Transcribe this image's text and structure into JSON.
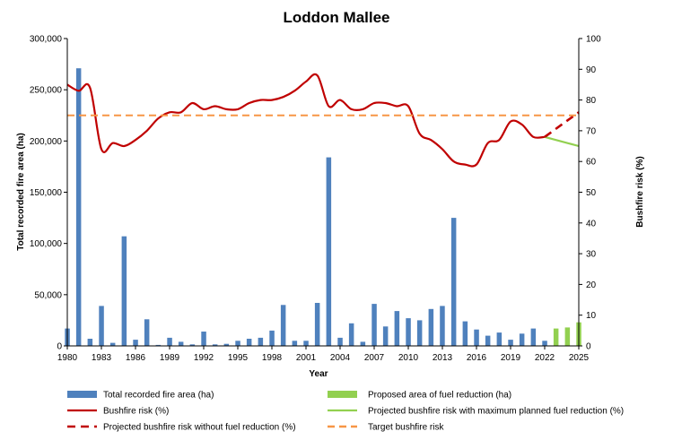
{
  "chart_data": {
    "type": "bar+line",
    "title": "Loddon Mallee",
    "xlabel": "Year",
    "ylabel_left": "Total recorded fire area (ha)",
    "ylabel_right": "Bushfire risk (%)",
    "xlim": [
      1980,
      2025
    ],
    "ylim_left": [
      0,
      300000
    ],
    "ylim_right": [
      0,
      100
    ],
    "x_ticks": [
      1980,
      1983,
      1986,
      1989,
      1992,
      1995,
      1998,
      2001,
      2004,
      2007,
      2010,
      2013,
      2016,
      2019,
      2022,
      2025
    ],
    "y_left_ticks": [
      "0",
      "50,000",
      "100,000",
      "150,000",
      "200,000",
      "250,000",
      "300,000"
    ],
    "y_right_ticks": [
      "0",
      "10",
      "20",
      "30",
      "40",
      "50",
      "60",
      "70",
      "80",
      "90",
      "100"
    ],
    "grid": false,
    "legend_position": "bottom",
    "series": [
      {
        "name": "Total recorded fire area (ha)",
        "kind": "bar",
        "axis": "left",
        "color": "#4f81bd",
        "x": [
          1980,
          1981,
          1982,
          1983,
          1984,
          1985,
          1986,
          1987,
          1988,
          1989,
          1990,
          1991,
          1992,
          1993,
          1994,
          1995,
          1996,
          1997,
          1998,
          1999,
          2000,
          2001,
          2002,
          2003,
          2004,
          2005,
          2006,
          2007,
          2008,
          2009,
          2010,
          2011,
          2012,
          2013,
          2014,
          2015,
          2016,
          2017,
          2018,
          2019,
          2020,
          2021,
          2022
        ],
        "values": [
          17000,
          271000,
          7000,
          39000,
          3000,
          107000,
          6000,
          26000,
          1000,
          8000,
          4000,
          1500,
          14000,
          1500,
          2000,
          5000,
          7000,
          8000,
          15000,
          40000,
          5000,
          5000,
          42000,
          184000,
          8000,
          22000,
          4000,
          41000,
          19000,
          34000,
          27000,
          25000,
          36000,
          39000,
          125000,
          24000,
          16000,
          10000,
          13000,
          6000,
          12000,
          17000,
          5000
        ]
      },
      {
        "name": "Proposed area of fuel reduction (ha)",
        "kind": "bar",
        "axis": "left",
        "color": "#92d050",
        "x": [
          2023,
          2024,
          2025
        ],
        "values": [
          17000,
          18000,
          23000
        ]
      },
      {
        "name": "Bushfire risk (%)",
        "kind": "line",
        "axis": "right",
        "color": "#c00000",
        "x": [
          1980,
          1981,
          1982,
          1983,
          1984,
          1985,
          1986,
          1987,
          1988,
          1989,
          1990,
          1991,
          1992,
          1993,
          1994,
          1995,
          1996,
          1997,
          1998,
          1999,
          2000,
          2001,
          2002,
          2003,
          2004,
          2005,
          2006,
          2007,
          2008,
          2009,
          2010,
          2011,
          2012,
          2013,
          2014,
          2015,
          2016,
          2017,
          2018,
          2019,
          2020,
          2021,
          2022
        ],
        "values": [
          85,
          83,
          84,
          64,
          66,
          65,
          67,
          70,
          74,
          76,
          76,
          79,
          77,
          78,
          77,
          77,
          79,
          80,
          80,
          81,
          83,
          86,
          88,
          78,
          80,
          77,
          77,
          79,
          79,
          78,
          78,
          69,
          67,
          64,
          60,
          59,
          59,
          66,
          67,
          73,
          72,
          68,
          68
        ]
      },
      {
        "name": "Projected bushfire risk with maximum planned fuel reduction (%)",
        "kind": "line",
        "axis": "right",
        "color": "#92d050",
        "x": [
          2022,
          2025
        ],
        "values": [
          68,
          65
        ]
      },
      {
        "name": "Projected bushfire risk without fuel reduction (%)",
        "kind": "line-dashed",
        "axis": "right",
        "color": "#c00000",
        "x": [
          2022,
          2025
        ],
        "values": [
          68,
          76
        ]
      },
      {
        "name": "Target bushfire risk",
        "kind": "line-dashed",
        "axis": "right",
        "color": "#f79646",
        "x": [
          1980,
          2025
        ],
        "values": [
          75,
          75
        ]
      }
    ]
  }
}
